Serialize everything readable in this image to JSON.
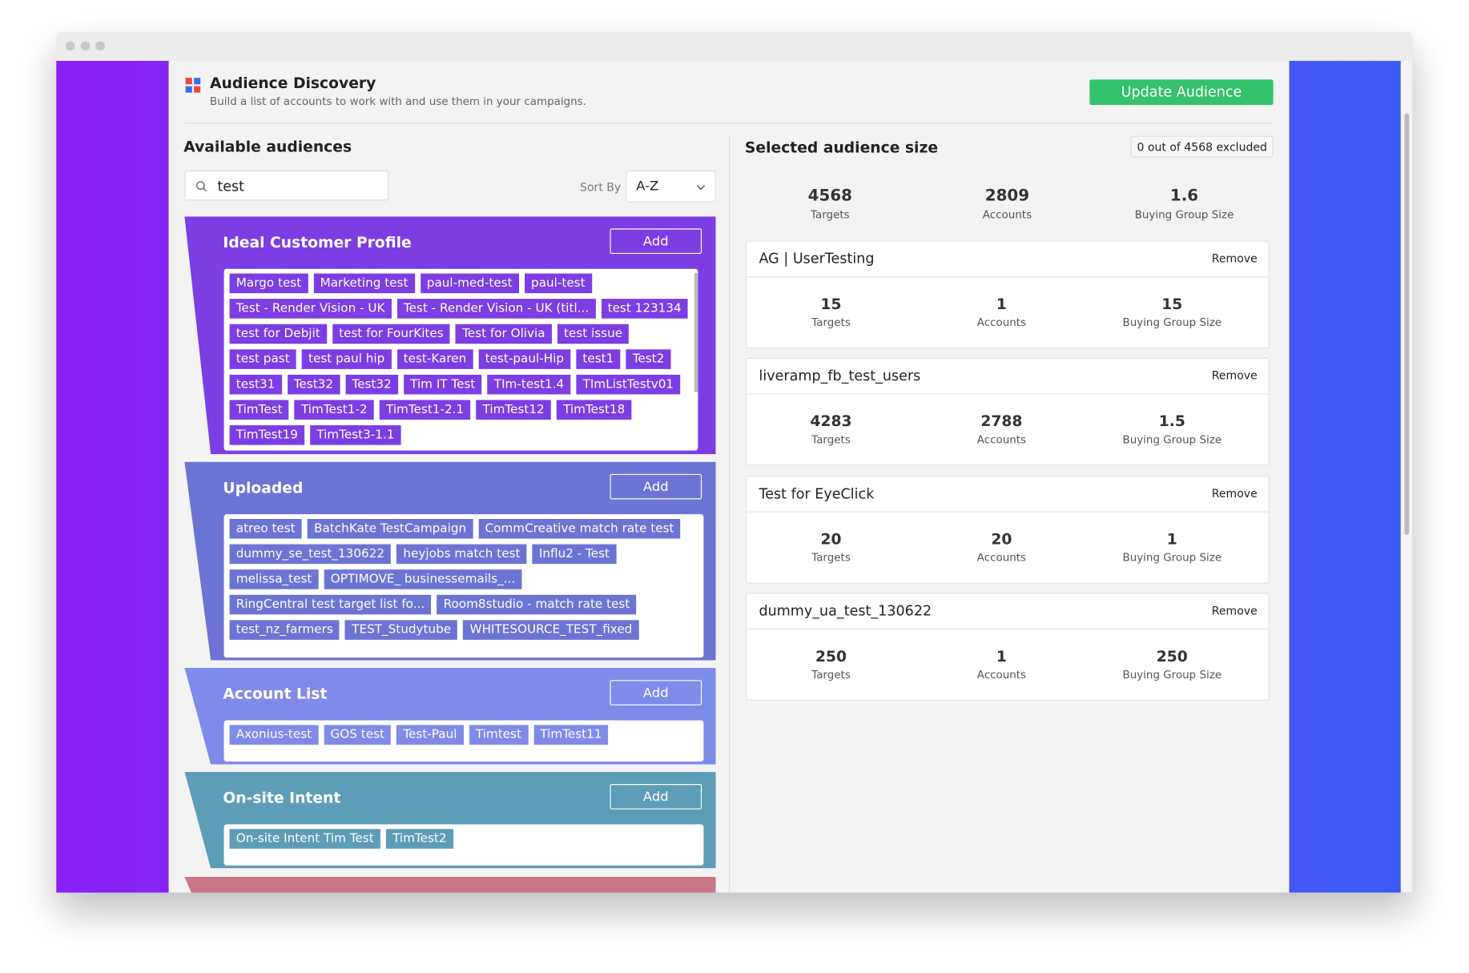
{
  "header": {
    "title": "Audience Discovery",
    "subtitle": "Build a list of accounts to work with and use them in your campaigns.",
    "button": "Update Audience"
  },
  "available": {
    "title": "Available audiences",
    "search": "test",
    "sort_label": "Sort By",
    "sort_value": "A-Z",
    "groups": [
      {
        "title": "Ideal Customer Profile",
        "button": "Add",
        "color": "#7c3de3",
        "tags": [
          "Margo test",
          "Marketing test",
          "paul-med-test",
          "paul-test",
          "Test - Render Vision - UK",
          "Test - Render Vision - UK (titl...",
          "test 123134",
          "test for Debjit",
          "test for FourKites",
          "Test for Olivia",
          "test issue",
          "test past",
          "test paul hip",
          "test-Karen",
          "test-paul-Hip",
          "test1",
          "Test2",
          "test31",
          "Test32",
          "Test32",
          "Tim IT Test",
          "TIm-test1.4",
          "TImListTestv01",
          "TimTest",
          "TimTest1-2",
          "TimTest1-2.1",
          "TimTest12",
          "TimTest18",
          "TimTest19",
          "TimTest3-1.1"
        ]
      },
      {
        "title": "Uploaded",
        "button": "Add",
        "color": "#6c74d3",
        "tags": [
          "atreo test",
          "BatchKate TestCampaign",
          "CommCreative match rate test",
          "dummy_se_test_130622",
          "heyjobs match test",
          "Influ2 - Test",
          "melissa_test",
          "OPTIMOVE_ businessemails_...",
          "RingCentral test target list fo...",
          "Room8studio - match rate test",
          "test_nz_farmers",
          "TEST_Studytube",
          "WHITESOURCE_TEST_fixed"
        ]
      },
      {
        "title": "Account List",
        "button": "Add",
        "color": "#7f8be9",
        "tags": [
          "Axonius-test",
          "GOS test",
          "Test-Paul",
          "Timtest",
          "TimTest11"
        ]
      },
      {
        "title": "On-site Intent",
        "button": "Add",
        "color": "#5e9db7",
        "tags": [
          "On-site Intent Tim Test",
          "TimTest2"
        ]
      }
    ]
  },
  "selected": {
    "title": "Selected audience size",
    "badge": "0 out of 4568 excluded",
    "remove": "Remove",
    "totals": [
      {
        "value": 4568,
        "label": "Targets"
      },
      {
        "value": 2809,
        "label": "Accounts"
      },
      {
        "value": 1.6,
        "label": "Buying Group Size"
      }
    ],
    "audiences": [
      {
        "name": "AG | UserTesting",
        "stats": [
          {
            "value": 15,
            "label": "Targets"
          },
          {
            "value": 1,
            "label": "Accounts"
          },
          {
            "value": 15,
            "label": "Buying Group Size"
          }
        ]
      },
      {
        "name": "liveramp_fb_test_users",
        "stats": [
          {
            "value": 4283,
            "label": "Targets"
          },
          {
            "value": 2788,
            "label": "Accounts"
          },
          {
            "value": 1.5,
            "label": "Buying Group Size"
          }
        ]
      },
      {
        "name": "Test for EyeClick",
        "stats": [
          {
            "value": 20,
            "label": "Targets"
          },
          {
            "value": 20,
            "label": "Accounts"
          },
          {
            "value": 1,
            "label": "Buying Group Size"
          }
        ]
      },
      {
        "name": "dummy_ua_test_130622",
        "stats": [
          {
            "value": 250,
            "label": "Targets"
          },
          {
            "value": 1,
            "label": "Accounts"
          },
          {
            "value": 250,
            "label": "Buying Group Size"
          }
        ]
      }
    ]
  }
}
